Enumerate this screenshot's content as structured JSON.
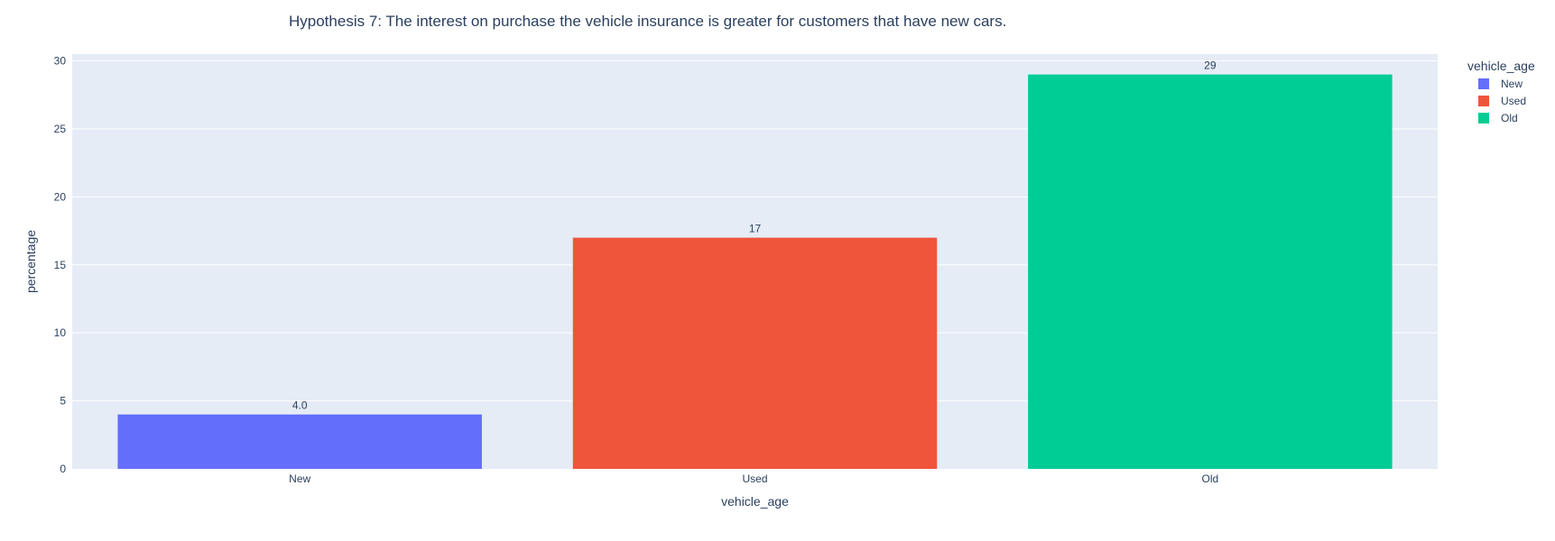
{
  "chart_data": {
    "type": "bar",
    "title": "Hypothesis 7: The interest on purchase the vehicle insurance is greater for customers that have new cars.",
    "xlabel": "vehicle_age",
    "ylabel": "percentage",
    "categories": [
      "New",
      "Used",
      "Old"
    ],
    "values": [
      4.0,
      17,
      29
    ],
    "value_labels": [
      "4.0",
      "17",
      "29"
    ],
    "colors": [
      "#636efa",
      "#ef553b",
      "#00cc96"
    ],
    "ylim": [
      0,
      30.5
    ],
    "yticks": [
      0,
      5,
      10,
      15,
      20,
      25,
      30
    ],
    "ytick_labels": [
      "0",
      "5",
      "10",
      "15",
      "20",
      "25",
      "30"
    ],
    "grid": true,
    "plot_background": "#e5ecf6",
    "legend": {
      "title": "vehicle_age",
      "placement": "top-right",
      "entries": [
        "New",
        "Used",
        "Old"
      ]
    }
  }
}
